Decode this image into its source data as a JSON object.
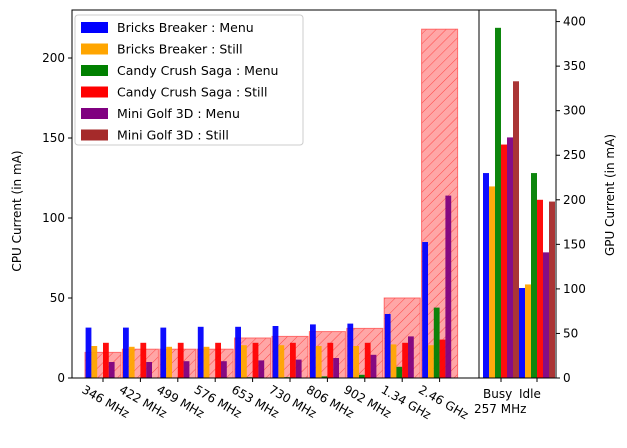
{
  "chart_data": {
    "type": "bar",
    "y_left": {
      "label": "CPU Current (in mA)",
      "ylim": [
        0,
        230
      ],
      "ticks": [
        0,
        50,
        100,
        150,
        200
      ]
    },
    "y_right": {
      "label": "GPU Current (in mA)",
      "ylim": [
        0,
        413
      ],
      "ticks": [
        0,
        50,
        100,
        150,
        200,
        250,
        300,
        350,
        400
      ]
    },
    "cpu_categories": [
      "346 MHz",
      "422 MHz",
      "499 MHz",
      "576 MHz",
      "653 MHz",
      "730 MHz",
      "806 MHz",
      "902 MHz",
      "1.34 GHz",
      "2.46 GHz"
    ],
    "gpu_categories": [
      "Busy\n257 MHz",
      "Idle"
    ],
    "series": [
      {
        "name": "Bricks Breaker : Menu",
        "color": "#0000ff",
        "cpu": [
          31.5,
          31.5,
          31.5,
          32,
          32,
          32.5,
          33.5,
          34,
          40,
          85
        ],
        "gpu": [
          230,
          101
        ]
      },
      {
        "name": "Bricks Breaker : Still",
        "color": "#ffa500",
        "cpu": [
          20,
          19.5,
          19.5,
          19.5,
          20.5,
          20.5,
          20,
          20,
          21,
          20.5
        ],
        "gpu": [
          215,
          105
        ]
      },
      {
        "name": "Candy Crush Saga : Menu",
        "color": "#008000",
        "cpu": [
          0.3,
          0.3,
          0.3,
          0.3,
          0.5,
          0.5,
          1,
          2,
          7,
          44
        ],
        "gpu": [
          393,
          230
        ]
      },
      {
        "name": "Candy Crush Saga : Still",
        "color": "#ff0000",
        "cpu": [
          22,
          22,
          22,
          22,
          22,
          22,
          22,
          22,
          22,
          24
        ],
        "gpu": [
          262,
          200
        ]
      },
      {
        "name": "Mini Golf 3D : Menu",
        "color": "#800080",
        "cpu": [
          10,
          10,
          10.5,
          10.5,
          11,
          11.5,
          12.5,
          14.5,
          26,
          114
        ],
        "gpu": [
          270,
          141
        ]
      },
      {
        "name": "Mini Golf 3D : Still",
        "color": "#a52a2a",
        "cpu": [
          null,
          null,
          null,
          null,
          null,
          null,
          null,
          null,
          null,
          null
        ],
        "gpu": [
          333,
          198
        ]
      }
    ],
    "frequency_band": {
      "color": "#ff0000",
      "hatch": "diagonal",
      "cpu": [
        16,
        18,
        18,
        18,
        25,
        26,
        29,
        31,
        50,
        218
      ]
    },
    "legend": {
      "position": "top-left"
    }
  }
}
